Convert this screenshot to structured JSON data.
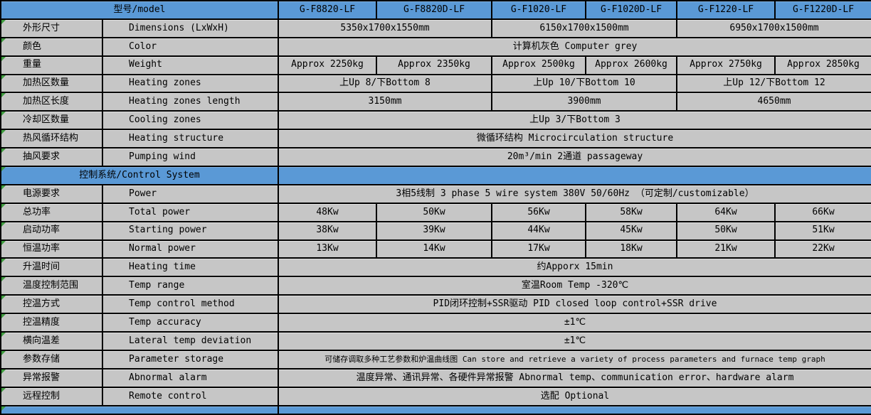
{
  "colors": {
    "header_blue": "#5A99D6",
    "cell_grey": "#C6C6C6",
    "border_black": "#000000",
    "marker_green": "#3f9e3f"
  },
  "columns": {
    "widths": [
      143,
      247,
      138,
      162,
      132,
      128,
      138,
      136
    ]
  },
  "rows": [
    {
      "kind": "header",
      "cells": [
        {
          "text": "型号/model",
          "span": 2
        },
        {
          "text": "G-F8820-LF"
        },
        {
          "text": "G-F8820D-LF"
        },
        {
          "text": "G-F1020-LF"
        },
        {
          "text": "G-F1020D-LF"
        },
        {
          "text": "G-F1220-LF"
        },
        {
          "text": "G-F1220D-LF"
        }
      ]
    },
    {
      "kind": "data",
      "cells": [
        {
          "text": "外形尺寸"
        },
        {
          "text": "Dimensions (LxWxH)"
        },
        {
          "text": "5350x1700x1550mm",
          "span": 2
        },
        {
          "text": "6150x1700x1500mm",
          "span": 2
        },
        {
          "text": "6950x1700x1500mm",
          "span": 2
        }
      ]
    },
    {
      "kind": "data",
      "cells": [
        {
          "text": "颜色"
        },
        {
          "text": "Color"
        },
        {
          "text": "计算机灰色 Computer grey",
          "span": 6
        }
      ]
    },
    {
      "kind": "data",
      "cells": [
        {
          "text": "重量"
        },
        {
          "text": "Weight"
        },
        {
          "text": "Approx 2250kg"
        },
        {
          "text": "Approx 2350kg"
        },
        {
          "text": "Approx 2500kg"
        },
        {
          "text": "Approx 2600kg"
        },
        {
          "text": "Approx 2750kg"
        },
        {
          "text": "Approx 2850kg"
        }
      ]
    },
    {
      "kind": "data",
      "cells": [
        {
          "text": "加热区数量"
        },
        {
          "text": "Heating zones"
        },
        {
          "text": "上Up 8/下Bottom 8",
          "span": 2
        },
        {
          "text": "上Up 10/下Bottom 10",
          "span": 2
        },
        {
          "text": "上Up 12/下Bottom 12",
          "span": 2
        }
      ]
    },
    {
      "kind": "data",
      "cells": [
        {
          "text": "加热区长度"
        },
        {
          "text": "Heating zones length"
        },
        {
          "text": "3150mm",
          "span": 2
        },
        {
          "text": "3900mm",
          "span": 2
        },
        {
          "text": "4650mm",
          "span": 2
        }
      ]
    },
    {
      "kind": "data",
      "cells": [
        {
          "text": "冷却区数量"
        },
        {
          "text": "Cooling zones"
        },
        {
          "text": "上Up 3/下Bottom 3",
          "span": 6
        }
      ]
    },
    {
      "kind": "data",
      "cells": [
        {
          "text": "热风循环结构"
        },
        {
          "text": "Heating structure"
        },
        {
          "text": "微循环结构 Microcirculation structure",
          "span": 6
        }
      ]
    },
    {
      "kind": "data",
      "cells": [
        {
          "text": "抽风要求"
        },
        {
          "text": "Pumping wind"
        },
        {
          "text": "20m³/min 2通道 passageway",
          "span": 6
        }
      ]
    },
    {
      "kind": "section",
      "cells": [
        {
          "text": "控制系统/Control System",
          "span": 2
        },
        {
          "text": "",
          "span": 6
        }
      ]
    },
    {
      "kind": "data",
      "cells": [
        {
          "text": "电源要求"
        },
        {
          "text": "Power"
        },
        {
          "text": "3相5线制 3 phase 5 wire system  380V 50/60Hz （可定制/customizable）",
          "span": 6
        }
      ]
    },
    {
      "kind": "data",
      "cells": [
        {
          "text": "总功率"
        },
        {
          "text": "Total power"
        },
        {
          "text": "48Kw"
        },
        {
          "text": "50Kw"
        },
        {
          "text": "56Kw"
        },
        {
          "text": "58Kw"
        },
        {
          "text": "64Kw"
        },
        {
          "text": "66Kw"
        }
      ]
    },
    {
      "kind": "data",
      "cells": [
        {
          "text": "启动功率"
        },
        {
          "text": "Starting power"
        },
        {
          "text": "38Kw"
        },
        {
          "text": "39Kw"
        },
        {
          "text": "44Kw"
        },
        {
          "text": "45Kw"
        },
        {
          "text": "50Kw"
        },
        {
          "text": "51Kw"
        }
      ]
    },
    {
      "kind": "data",
      "cells": [
        {
          "text": "恒温功率"
        },
        {
          "text": "Normal power"
        },
        {
          "text": "13Kw"
        },
        {
          "text": "14Kw"
        },
        {
          "text": "17Kw"
        },
        {
          "text": "18Kw"
        },
        {
          "text": "21Kw"
        },
        {
          "text": "22Kw"
        }
      ]
    },
    {
      "kind": "data",
      "cells": [
        {
          "text": "升温时间"
        },
        {
          "text": "Heating time"
        },
        {
          "text": "约Apporx 15min",
          "span": 6
        }
      ]
    },
    {
      "kind": "data",
      "cells": [
        {
          "text": "温度控制范围"
        },
        {
          "text": "Temp range"
        },
        {
          "text": "室温Room Temp -320℃",
          "span": 6
        }
      ]
    },
    {
      "kind": "data",
      "cells": [
        {
          "text": "控温方式"
        },
        {
          "text": "Temp control method"
        },
        {
          "text": "PID闭环控制+SSR驱动 PID closed loop control+SSR drive",
          "span": 6
        }
      ]
    },
    {
      "kind": "data",
      "cells": [
        {
          "text": "控温精度"
        },
        {
          "text": "Temp accuracy"
        },
        {
          "text": "±1℃",
          "span": 6
        }
      ]
    },
    {
      "kind": "data",
      "cells": [
        {
          "text": "横向温差"
        },
        {
          "text": "Lateral temp deviation"
        },
        {
          "text": "±1℃",
          "span": 6
        }
      ]
    },
    {
      "kind": "data",
      "cells": [
        {
          "text": "参数存储"
        },
        {
          "text": "Parameter storage"
        },
        {
          "text": "可储存调取多种工艺参数和炉温曲线图 Can store and retrieve a variety of process parameters and furnace temp graph",
          "span": 6,
          "small": true
        }
      ]
    },
    {
      "kind": "data",
      "cells": [
        {
          "text": "异常报警"
        },
        {
          "text": "Abnormal alarm"
        },
        {
          "text": "温度异常、通讯异常、各硬件异常报警 Abnormal temp、communication error、hardware alarm",
          "span": 6
        }
      ]
    },
    {
      "kind": "data",
      "cells": [
        {
          "text": "远程控制"
        },
        {
          "text": "Remote control"
        },
        {
          "text": "选配 Optional",
          "span": 6
        }
      ]
    },
    {
      "kind": "strip",
      "cells": [
        {
          "text": "",
          "span": 2
        },
        {
          "text": "",
          "span": 6
        }
      ]
    }
  ]
}
